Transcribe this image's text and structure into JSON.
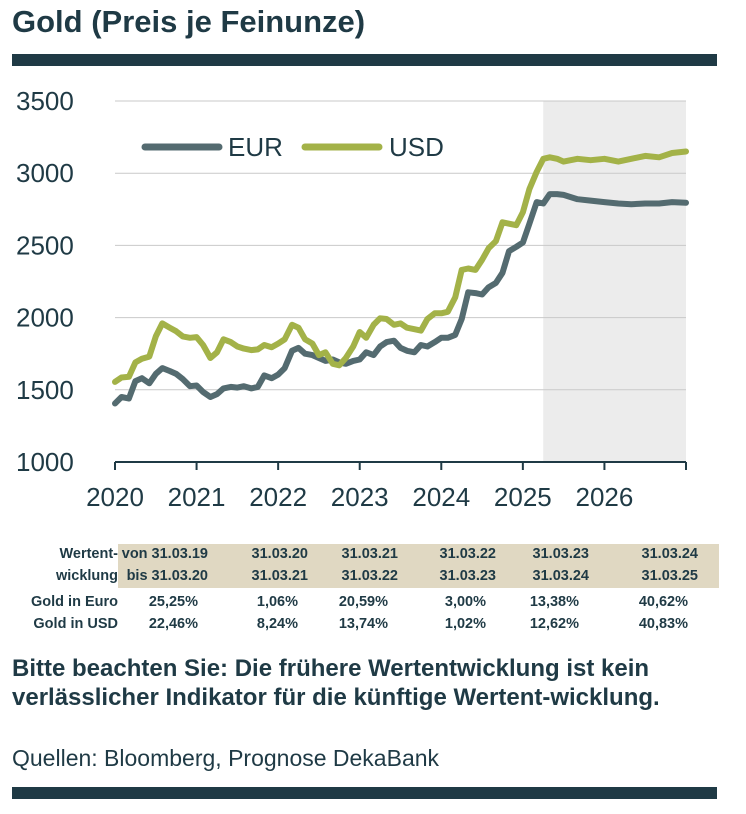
{
  "title": "Gold (Preis je Feinunze)",
  "colors": {
    "eur": "#546b70",
    "usd": "#a3b248",
    "forecast": "#ececec",
    "text": "#1f3a45",
    "band": "#e0d8c2"
  },
  "chart_data": {
    "type": "line",
    "title": "Gold (Preis je Feinunze)",
    "xlabel": "",
    "ylabel": "",
    "xlim": [
      2020,
      2027
    ],
    "ylim": [
      1000,
      3500
    ],
    "y_ticks": [
      "1000",
      "1500",
      "2000",
      "2500",
      "3000",
      "3500"
    ],
    "x_ticks": [
      "2020",
      "2021",
      "2022",
      "2023",
      "2024",
      "2025",
      "2026"
    ],
    "grid": true,
    "legend": "top-left",
    "forecast_from": 2025.25,
    "series": [
      {
        "name": "EUR",
        "x": [
          2020.0,
          2020.08,
          2020.17,
          2020.25,
          2020.33,
          2020.42,
          2020.5,
          2020.58,
          2020.67,
          2020.75,
          2020.83,
          2020.92,
          2021.0,
          2021.08,
          2021.17,
          2021.25,
          2021.33,
          2021.42,
          2021.5,
          2021.58,
          2021.67,
          2021.75,
          2021.83,
          2021.92,
          2022.0,
          2022.08,
          2022.17,
          2022.25,
          2022.33,
          2022.42,
          2022.5,
          2022.58,
          2022.67,
          2022.75,
          2022.83,
          2022.92,
          2023.0,
          2023.08,
          2023.17,
          2023.25,
          2023.33,
          2023.42,
          2023.5,
          2023.58,
          2023.67,
          2023.75,
          2023.83,
          2023.92,
          2024.0,
          2024.08,
          2024.17,
          2024.25,
          2024.33,
          2024.42,
          2024.5,
          2024.58,
          2024.67,
          2024.75,
          2024.83,
          2024.92,
          2025.0,
          2025.08,
          2025.17,
          2025.25,
          2025.33,
          2025.42,
          2025.5,
          2025.67,
          2025.83,
          2026.0,
          2026.17,
          2026.33,
          2026.5,
          2026.67,
          2026.83,
          2027.0
        ],
        "y": [
          1405,
          1450,
          1440,
          1560,
          1580,
          1545,
          1610,
          1650,
          1630,
          1610,
          1575,
          1525,
          1530,
          1485,
          1450,
          1470,
          1510,
          1520,
          1515,
          1525,
          1510,
          1520,
          1600,
          1580,
          1605,
          1650,
          1770,
          1790,
          1750,
          1740,
          1720,
          1700,
          1710,
          1690,
          1680,
          1700,
          1710,
          1760,
          1740,
          1800,
          1830,
          1840,
          1790,
          1770,
          1760,
          1810,
          1800,
          1830,
          1860,
          1860,
          1880,
          1990,
          2175,
          2170,
          2160,
          2210,
          2240,
          2310,
          2460,
          2490,
          2520,
          2650,
          2800,
          2790,
          2855,
          2855,
          2850,
          2820,
          2810,
          2800,
          2790,
          2785,
          2790,
          2790,
          2800,
          2795
        ]
      },
      {
        "name": "USD",
        "x": [
          2020.0,
          2020.08,
          2020.17,
          2020.25,
          2020.33,
          2020.42,
          2020.5,
          2020.58,
          2020.67,
          2020.75,
          2020.83,
          2020.92,
          2021.0,
          2021.08,
          2021.17,
          2021.25,
          2021.33,
          2021.42,
          2021.5,
          2021.58,
          2021.67,
          2021.75,
          2021.83,
          2021.92,
          2022.0,
          2022.08,
          2022.17,
          2022.25,
          2022.33,
          2022.42,
          2022.5,
          2022.58,
          2022.67,
          2022.75,
          2022.83,
          2022.92,
          2023.0,
          2023.08,
          2023.17,
          2023.25,
          2023.33,
          2023.42,
          2023.5,
          2023.58,
          2023.67,
          2023.75,
          2023.83,
          2023.92,
          2024.0,
          2024.08,
          2024.17,
          2024.25,
          2024.33,
          2024.42,
          2024.5,
          2024.58,
          2024.67,
          2024.75,
          2024.83,
          2024.92,
          2025.0,
          2025.08,
          2025.17,
          2025.25,
          2025.33,
          2025.42,
          2025.5,
          2025.67,
          2025.83,
          2026.0,
          2026.17,
          2026.33,
          2026.5,
          2026.67,
          2026.83,
          2027.0
        ],
        "y": [
          1555,
          1585,
          1590,
          1690,
          1715,
          1730,
          1870,
          1960,
          1930,
          1905,
          1870,
          1860,
          1865,
          1810,
          1720,
          1760,
          1850,
          1830,
          1800,
          1785,
          1775,
          1780,
          1810,
          1795,
          1820,
          1850,
          1950,
          1930,
          1850,
          1820,
          1740,
          1760,
          1680,
          1670,
          1720,
          1800,
          1900,
          1860,
          1950,
          1995,
          1990,
          1950,
          1960,
          1930,
          1920,
          1910,
          1990,
          2030,
          2030,
          2040,
          2140,
          2330,
          2340,
          2330,
          2400,
          2480,
          2530,
          2660,
          2650,
          2640,
          2730,
          2890,
          3010,
          3100,
          3110,
          3100,
          3080,
          3100,
          3090,
          3100,
          3080,
          3100,
          3120,
          3110,
          3140,
          3150
        ]
      }
    ]
  },
  "performance": {
    "header_label_line1": "Wertent-",
    "header_label_line2": "wicklung",
    "from_prefix": "von",
    "to_prefix": "bis",
    "periods": [
      {
        "from": "31.03.19",
        "to": "31.03.20"
      },
      {
        "from": "31.03.20",
        "to": "31.03.21"
      },
      {
        "from": "31.03.21",
        "to": "31.03.22"
      },
      {
        "from": "31.03.22",
        "to": "31.03.23"
      },
      {
        "from": "31.03.23",
        "to": "31.03.24"
      },
      {
        "from": "31.03.24",
        "to": "31.03.25"
      }
    ],
    "rows": [
      {
        "label": "Gold in Euro",
        "values": [
          "25,25%",
          "1,06%",
          "20,59%",
          "3,00%",
          "13,38%",
          "40,62%"
        ]
      },
      {
        "label": "Gold in USD",
        "values": [
          "22,46%",
          "8,24%",
          "13,74%",
          "1,02%",
          "12,62%",
          "40,83%"
        ]
      }
    ]
  },
  "note": "Bitte beachten Sie: Die frühere Wertentwicklung ist kein verlässlicher Indikator für die künftige Wertent-wicklung.",
  "source": "Quellen: Bloomberg, Prognose DekaBank"
}
